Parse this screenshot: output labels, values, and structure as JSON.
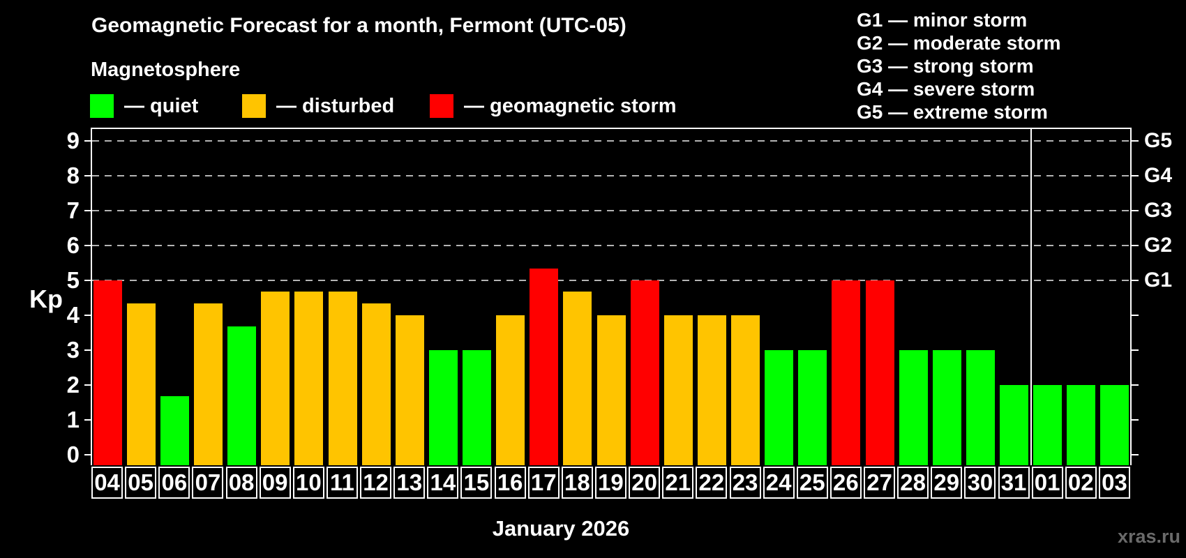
{
  "title": "Geomagnetic Forecast for a month, Fermont (UTC-05)",
  "subtitle": "Magnetosphere",
  "legend": {
    "items": [
      {
        "status": "quiet",
        "label": "— quiet"
      },
      {
        "status": "disturbed",
        "label": "— disturbed"
      },
      {
        "status": "storm",
        "label": "— geomagnetic storm"
      }
    ]
  },
  "storm_scale_legend": [
    "G1 — minor storm",
    "G2 — moderate storm",
    "G3 — strong storm",
    "G4 — severe storm",
    "G5 — extreme storm"
  ],
  "watermark": "xras.ru",
  "colors": {
    "background": "#000000",
    "text": "#ffffff",
    "grid": "#b4b4b4",
    "watermark": "#6a6a6a"
  },
  "chart_data": {
    "type": "bar",
    "title": "Geomagnetic Forecast for a month, Fermont (UTC-05)",
    "ylabel": "Kp",
    "xlabel": "January 2026",
    "ylim": [
      -0.32,
      9.37
    ],
    "grid": "dashed horizontal lines at Kp 5-9 only",
    "y_ticks": [
      0,
      1,
      2,
      3,
      4,
      5,
      6,
      7,
      8,
      9
    ],
    "grid_levels": [
      5,
      6,
      7,
      8,
      9
    ],
    "right_axis_labels": [
      {
        "kp": 5,
        "label": "G1"
      },
      {
        "kp": 6,
        "label": "G2"
      },
      {
        "kp": 7,
        "label": "G3"
      },
      {
        "kp": 8,
        "label": "G4"
      },
      {
        "kp": 9,
        "label": "G5"
      }
    ],
    "status_colors": {
      "quiet": "#00ff00",
      "disturbed": "#ffc400",
      "storm": "#ff0000"
    },
    "separator_before_index": 28,
    "days": [
      {
        "date": "04",
        "kp": 5.0,
        "status": "storm"
      },
      {
        "date": "05",
        "kp": 4.33,
        "status": "disturbed"
      },
      {
        "date": "06",
        "kp": 1.67,
        "status": "quiet"
      },
      {
        "date": "07",
        "kp": 4.33,
        "status": "disturbed"
      },
      {
        "date": "08",
        "kp": 3.67,
        "status": "quiet"
      },
      {
        "date": "09",
        "kp": 4.67,
        "status": "disturbed"
      },
      {
        "date": "10",
        "kp": 4.67,
        "status": "disturbed"
      },
      {
        "date": "11",
        "kp": 4.67,
        "status": "disturbed"
      },
      {
        "date": "12",
        "kp": 4.33,
        "status": "disturbed"
      },
      {
        "date": "13",
        "kp": 4.0,
        "status": "disturbed"
      },
      {
        "date": "14",
        "kp": 3.0,
        "status": "quiet"
      },
      {
        "date": "15",
        "kp": 3.0,
        "status": "quiet"
      },
      {
        "date": "16",
        "kp": 4.0,
        "status": "disturbed"
      },
      {
        "date": "17",
        "kp": 5.33,
        "status": "storm"
      },
      {
        "date": "18",
        "kp": 4.67,
        "status": "disturbed"
      },
      {
        "date": "19",
        "kp": 4.0,
        "status": "disturbed"
      },
      {
        "date": "20",
        "kp": 5.0,
        "status": "storm"
      },
      {
        "date": "21",
        "kp": 4.0,
        "status": "disturbed"
      },
      {
        "date": "22",
        "kp": 4.0,
        "status": "disturbed"
      },
      {
        "date": "23",
        "kp": 4.0,
        "status": "disturbed"
      },
      {
        "date": "24",
        "kp": 3.0,
        "status": "quiet"
      },
      {
        "date": "25",
        "kp": 3.0,
        "status": "quiet"
      },
      {
        "date": "26",
        "kp": 5.0,
        "status": "storm"
      },
      {
        "date": "27",
        "kp": 5.0,
        "status": "storm"
      },
      {
        "date": "28",
        "kp": 3.0,
        "status": "quiet"
      },
      {
        "date": "29",
        "kp": 3.0,
        "status": "quiet"
      },
      {
        "date": "30",
        "kp": 3.0,
        "status": "quiet"
      },
      {
        "date": "31",
        "kp": 2.0,
        "status": "quiet"
      },
      {
        "date": "01",
        "kp": 2.0,
        "status": "quiet"
      },
      {
        "date": "02",
        "kp": 2.0,
        "status": "quiet"
      },
      {
        "date": "03",
        "kp": 2.0,
        "status": "quiet"
      }
    ]
  }
}
